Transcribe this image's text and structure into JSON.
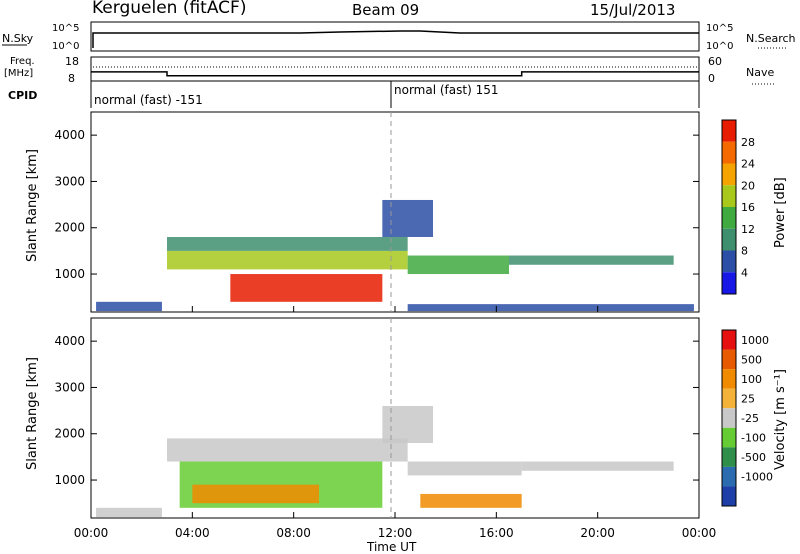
{
  "header": {
    "station": "Kerguelen (fitACF)",
    "beam": "Beam 09",
    "date": "15/Jul/2013"
  },
  "left_labels": {
    "nsky": "N.Sky",
    "nsky_top": "10^5",
    "nsky_bottom": "10^0",
    "freq": "Freq.",
    "freq_unit": "[MHz]",
    "freq_top": "18",
    "freq_bottom": "8",
    "cpid": "CPID"
  },
  "right_labels": {
    "nsearch": "N.Search",
    "nsearch_top": "10^5",
    "nsearch_bottom": "10^0",
    "nave": "Nave",
    "nave_top": "60",
    "nave_bottom": "0"
  },
  "cpid_segments": [
    {
      "label": "normal (fast) -151",
      "start_hour": 0
    },
    {
      "label": "normal (fast) 151",
      "start_hour": 12
    }
  ],
  "frequency_trace": [
    {
      "hour": 0,
      "value": 11.8
    },
    {
      "hour": 3.0,
      "value": 11.8
    },
    {
      "hour": 3.0,
      "value": 10.2
    },
    {
      "hour": 17.0,
      "value": 10.2
    },
    {
      "hour": 17.0,
      "value": 11.8
    },
    {
      "hour": 24,
      "value": 11.8
    }
  ],
  "panels": {
    "power": {
      "ylabel": "Slant Range [km]",
      "cbar_label": "Power [dB]"
    },
    "velocity": {
      "ylabel": "Slant Range [km]",
      "cbar_label": "Velocity [m s⁻¹]"
    }
  },
  "xaxis": {
    "label": "Time UT",
    "ticks": [
      "00:00",
      "04:00",
      "08:00",
      "12:00",
      "16:00",
      "20:00",
      "00:00"
    ]
  },
  "yaxis": {
    "ticks": [
      "1000",
      "2000",
      "3000",
      "4000"
    ]
  },
  "colorbars": {
    "power": {
      "labels": [
        "4",
        "8",
        "12",
        "16",
        "20",
        "24",
        "28"
      ],
      "colors": [
        "#1818e6",
        "#2b4ea6",
        "#3e8f6e",
        "#3faa3f",
        "#a8c81c",
        "#f5a300",
        "#f56a00",
        "#e81c00"
      ]
    },
    "velocity": {
      "labels": [
        "1000",
        "500",
        "100",
        "25",
        "-25",
        "-100",
        "-500",
        "-1000"
      ],
      "colors": [
        "#1e3fa8",
        "#2b6bb0",
        "#2f8f4a",
        "#66cc33",
        "#c8c8c8",
        "#f4b23a",
        "#f08a00",
        "#e85a00",
        "#e61010"
      ]
    }
  },
  "chart_data": [
    {
      "type": "heatmap",
      "title": "Power",
      "xlabel": "Time UT",
      "ylabel": "Slant Range [km]",
      "xlim": [
        0,
        24
      ],
      "ylim": [
        180,
        4500
      ],
      "cbar_range": [
        0,
        30
      ],
      "regions": [
        {
          "t0": 0.2,
          "t1": 2.8,
          "r0": 200,
          "r1": 400,
          "level": 1
        },
        {
          "t0": 3.0,
          "t1": 12.5,
          "r0": 1100,
          "r1": 1500,
          "level": 4
        },
        {
          "t0": 3.0,
          "t1": 12.5,
          "r0": 1500,
          "r1": 1800,
          "level": 2
        },
        {
          "t0": 5.5,
          "t1": 11.5,
          "r0": 400,
          "r1": 1000,
          "level": 7
        },
        {
          "t0": 12.5,
          "t1": 16.5,
          "r0": 1000,
          "r1": 1400,
          "level": 3
        },
        {
          "t0": 16.5,
          "t1": 23.0,
          "r0": 1200,
          "r1": 1400,
          "level": 2
        },
        {
          "t0": 12.5,
          "t1": 23.8,
          "r0": 200,
          "r1": 350,
          "level": 1
        },
        {
          "t0": 11.5,
          "t1": 13.5,
          "r0": 1800,
          "r1": 2600,
          "level": 1
        }
      ]
    },
    {
      "type": "heatmap",
      "title": "Velocity",
      "xlabel": "Time UT",
      "ylabel": "Slant Range [km]",
      "xlim": [
        0,
        24
      ],
      "ylim": [
        180,
        4500
      ],
      "cbar_range": [
        -1000,
        1000
      ],
      "regions": [
        {
          "t0": 0.2,
          "t1": 2.8,
          "r0": 200,
          "r1": 400,
          "level": 4
        },
        {
          "t0": 3.0,
          "t1": 12.5,
          "r0": 1400,
          "r1": 1900,
          "level": 4
        },
        {
          "t0": 3.5,
          "t1": 11.5,
          "r0": 400,
          "r1": 1400,
          "level": 3
        },
        {
          "t0": 4.0,
          "t1": 9.0,
          "r0": 500,
          "r1": 900,
          "level": 6
        },
        {
          "t0": 12.5,
          "t1": 17.0,
          "r0": 1100,
          "r1": 1400,
          "level": 4
        },
        {
          "t0": 13.0,
          "t1": 17.0,
          "r0": 400,
          "r1": 700,
          "level": 6
        },
        {
          "t0": 17.0,
          "t1": 23.0,
          "r0": 1200,
          "r1": 1400,
          "level": 4
        },
        {
          "t0": 11.5,
          "t1": 13.5,
          "r0": 1800,
          "r1": 2600,
          "level": 4
        }
      ]
    }
  ]
}
